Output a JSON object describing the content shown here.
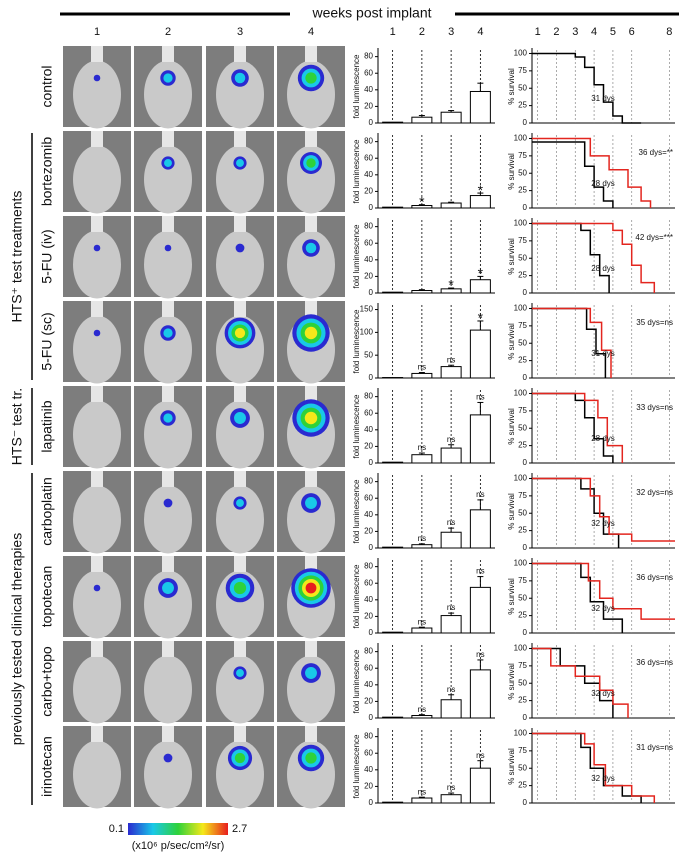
{
  "header": {
    "title": "weeks post implant"
  },
  "image_weeks": [
    "1",
    "2",
    "3",
    "4"
  ],
  "groups": [
    {
      "label": "HTS⁺ test treatments"
    },
    {
      "label": "HTS⁻ test tr."
    },
    {
      "label": "previously tested clinical therapies"
    }
  ],
  "bar_axis": {
    "ylabel": "fold luminescence",
    "categories": [
      "1",
      "2",
      "3",
      "4"
    ]
  },
  "survival_axis": {
    "ylabel": "% survival",
    "xlim": [
      0.7,
      8.3
    ],
    "xticks": [
      1,
      2,
      3,
      4,
      5,
      6,
      8
    ],
    "ylim": [
      0,
      105
    ],
    "yticks": [
      0,
      25,
      50,
      75,
      100
    ]
  },
  "rows": [
    {
      "name": "control",
      "bars": {
        "ylim": [
          0,
          88
        ],
        "yticks": [
          0,
          20,
          40,
          60,
          80
        ],
        "values": [
          1,
          7,
          13,
          38
        ],
        "errors": [
          0,
          2,
          2,
          10
        ],
        "annotations": [
          null,
          null,
          null,
          null
        ]
      },
      "survival": {
        "curves": [
          {
            "color": "#000000",
            "x": [
              0.7,
              3.0,
              3.0,
              3.5,
              3.5,
              4.0,
              4.0,
              4.5,
              4.5,
              5.0,
              5.0,
              5.5,
              5.5,
              6.5
            ],
            "y": [
              100,
              100,
              95,
              95,
              80,
              80,
              55,
              55,
              30,
              30,
              10,
              10,
              0,
              0
            ]
          }
        ],
        "labels": [
          {
            "text": "31 dys",
            "color": "#000000"
          }
        ]
      }
    },
    {
      "name": "bortezomib",
      "bars": {
        "ylim": [
          0,
          88
        ],
        "yticks": [
          0,
          20,
          40,
          60,
          80
        ],
        "values": [
          1,
          3,
          6,
          15
        ],
        "errors": [
          0,
          1,
          1,
          3
        ],
        "annotations": [
          null,
          "*",
          null,
          "*"
        ]
      },
      "survival": {
        "curves": [
          {
            "color": "#000000",
            "x": [
              0.7,
              3.5,
              3.5,
              4.0,
              4.0,
              4.5,
              4.5,
              5.0,
              5.0
            ],
            "y": [
              95,
              95,
              60,
              60,
              30,
              30,
              10,
              10,
              0
            ]
          },
          {
            "color": "#e3261f",
            "x": [
              0.7,
              3.8,
              3.8,
              4.8,
              4.8,
              5.8,
              5.8,
              6.5,
              6.5,
              7.0,
              7.0
            ],
            "y": [
              100,
              100,
              75,
              75,
              55,
              55,
              30,
              30,
              10,
              10,
              0
            ]
          }
        ],
        "labels": [
          {
            "text": "28 dys",
            "color": "#000000"
          },
          {
            "text": "36 dys=**",
            "color": "#e3261f"
          }
        ]
      }
    },
    {
      "name": "5-FU (iv)",
      "bars": {
        "ylim": [
          0,
          88
        ],
        "yticks": [
          0,
          20,
          40,
          60,
          80
        ],
        "values": [
          1,
          3,
          5,
          16
        ],
        "errors": [
          0,
          1,
          1,
          4
        ],
        "annotations": [
          null,
          null,
          "*",
          "*"
        ]
      },
      "survival": {
        "curves": [
          {
            "color": "#000000",
            "x": [
              0.7,
              3.3,
              3.3,
              3.8,
              3.8,
              4.3,
              4.3,
              4.8,
              4.8
            ],
            "y": [
              100,
              100,
              90,
              90,
              55,
              55,
              25,
              25,
              0
            ]
          },
          {
            "color": "#e3261f",
            "x": [
              0.7,
              5.0,
              5.0,
              5.5,
              5.5,
              6.0,
              6.0,
              6.5,
              6.5,
              7.2,
              7.2
            ],
            "y": [
              100,
              100,
              90,
              90,
              70,
              70,
              40,
              40,
              15,
              15,
              0
            ]
          }
        ],
        "labels": [
          {
            "text": "28 dys",
            "color": "#000000"
          },
          {
            "text": "42 dys=***",
            "color": "#e3261f"
          }
        ]
      }
    },
    {
      "name": "5-FU (sc)",
      "bars": {
        "ylim": [
          0,
          160
        ],
        "yticks": [
          0,
          50,
          100,
          150
        ],
        "values": [
          1,
          10,
          25,
          105
        ],
        "errors": [
          0,
          2,
          3,
          20
        ],
        "annotations": [
          null,
          "ns",
          "ns",
          "*"
        ]
      },
      "survival": {
        "curves": [
          {
            "color": "#000000",
            "x": [
              0.7,
              3.6,
              3.6,
              4.1,
              4.1,
              4.6,
              4.6
            ],
            "y": [
              100,
              100,
              70,
              70,
              35,
              35,
              0
            ]
          },
          {
            "color": "#e3261f",
            "x": [
              0.7,
              3.8,
              3.8,
              4.4,
              4.4,
              4.9,
              4.9
            ],
            "y": [
              100,
              100,
              80,
              80,
              40,
              40,
              0
            ]
          }
        ],
        "labels": [
          {
            "text": "31 dys",
            "color": "#000000"
          },
          {
            "text": "35 dys=ns",
            "color": "#e3261f"
          }
        ]
      }
    },
    {
      "name": "lapatinib",
      "bars": {
        "ylim": [
          0,
          88
        ],
        "yticks": [
          0,
          20,
          40,
          60,
          80
        ],
        "values": [
          1,
          10,
          18,
          58
        ],
        "errors": [
          0,
          2,
          4,
          15
        ],
        "annotations": [
          null,
          "ns",
          "ns",
          "ns"
        ]
      },
      "survival": {
        "curves": [
          {
            "color": "#000000",
            "x": [
              0.7,
              3.0,
              3.0,
              3.5,
              3.5,
              4.0,
              4.0,
              4.5,
              4.5,
              5.0,
              5.0
            ],
            "y": [
              100,
              100,
              90,
              90,
              65,
              65,
              35,
              35,
              10,
              10,
              0
            ]
          },
          {
            "color": "#e3261f",
            "x": [
              0.7,
              3.5,
              3.5,
              4.2,
              4.2,
              4.7,
              4.7,
              5.5,
              5.5
            ],
            "y": [
              100,
              100,
              90,
              90,
              65,
              65,
              25,
              25,
              0
            ]
          }
        ],
        "labels": [
          {
            "text": "28 dys",
            "color": "#000000"
          },
          {
            "text": "33 dys=ns",
            "color": "#e3261f"
          }
        ]
      }
    },
    {
      "name": "carboplatin",
      "bars": {
        "ylim": [
          0,
          88
        ],
        "yticks": [
          0,
          20,
          40,
          60,
          80
        ],
        "values": [
          1,
          4,
          19,
          46
        ],
        "errors": [
          0,
          1,
          5,
          12
        ],
        "annotations": [
          null,
          "ns",
          "ns",
          "ns"
        ]
      },
      "survival": {
        "curves": [
          {
            "color": "#000000",
            "x": [
              0.7,
              3.3,
              3.3,
              4.0,
              4.0,
              4.5,
              4.5,
              5.3,
              5.3
            ],
            "y": [
              100,
              100,
              85,
              85,
              50,
              50,
              20,
              20,
              0
            ]
          },
          {
            "color": "#e3261f",
            "x": [
              0.7,
              3.8,
              3.8,
              4.3,
              4.3,
              4.8,
              4.8,
              6.0,
              6.0,
              8.3
            ],
            "y": [
              100,
              100,
              75,
              75,
              45,
              45,
              20,
              20,
              10,
              10
            ]
          }
        ],
        "labels": [
          {
            "text": "32 dys",
            "color": "#000000"
          },
          {
            "text": "32 dys=ns",
            "color": "#e3261f"
          }
        ]
      }
    },
    {
      "name": "topotecan",
      "bars": {
        "ylim": [
          0,
          88
        ],
        "yticks": [
          0,
          20,
          40,
          60,
          80
        ],
        "values": [
          1,
          6,
          21,
          55
        ],
        "errors": [
          0,
          1,
          3,
          13
        ],
        "annotations": [
          null,
          "ns",
          "ns",
          "ns"
        ]
      },
      "survival": {
        "curves": [
          {
            "color": "#000000",
            "x": [
              0.7,
              3.3,
              3.3,
              3.8,
              3.8,
              4.5,
              4.5,
              5.5,
              5.5
            ],
            "y": [
              100,
              100,
              80,
              80,
              45,
              45,
              20,
              20,
              0
            ]
          },
          {
            "color": "#e3261f",
            "x": [
              0.7,
              3.7,
              3.7,
              4.3,
              4.3,
              5.0,
              5.0,
              6.5,
              6.5,
              8.3
            ],
            "y": [
              100,
              100,
              75,
              75,
              50,
              50,
              35,
              35,
              20,
              20
            ]
          }
        ],
        "labels": [
          {
            "text": "32 dys",
            "color": "#000000"
          },
          {
            "text": "36 dys=ns",
            "color": "#e3261f"
          }
        ]
      }
    },
    {
      "name": "carbo+topo",
      "bars": {
        "ylim": [
          0,
          88
        ],
        "yticks": [
          0,
          20,
          40,
          60,
          80
        ],
        "values": [
          1,
          3,
          22,
          58
        ],
        "errors": [
          0,
          1,
          6,
          12
        ],
        "annotations": [
          null,
          "ns",
          "ns",
          "ns"
        ]
      },
      "survival": {
        "curves": [
          {
            "color": "#000000",
            "x": [
              0.7,
              2.2,
              2.2,
              3.5,
              3.5,
              4.3,
              4.3,
              5.0,
              5.0
            ],
            "y": [
              100,
              100,
              75,
              75,
              50,
              50,
              25,
              25,
              0
            ]
          },
          {
            "color": "#e3261f",
            "x": [
              0.7,
              1.7,
              1.7,
              3.0,
              3.0,
              4.3,
              4.3,
              5.0,
              5.0,
              5.8,
              5.8
            ],
            "y": [
              100,
              100,
              75,
              75,
              60,
              60,
              40,
              40,
              20,
              20,
              0
            ]
          }
        ],
        "labels": [
          {
            "text": "32 dys",
            "color": "#000000"
          },
          {
            "text": "36 dys=ns",
            "color": "#e3261f"
          }
        ]
      }
    },
    {
      "name": "irinotecan",
      "bars": {
        "ylim": [
          0,
          88
        ],
        "yticks": [
          0,
          20,
          40,
          60,
          80
        ],
        "values": [
          1,
          6,
          10,
          42
        ],
        "errors": [
          0,
          1,
          2,
          9
        ],
        "annotations": [
          null,
          "ns",
          "ns",
          "ns"
        ]
      },
      "survival": {
        "curves": [
          {
            "color": "#000000",
            "x": [
              0.7,
              3.3,
              3.3,
              3.8,
              3.8,
              4.5,
              4.5,
              5.5,
              5.5,
              6.5,
              6.5
            ],
            "y": [
              100,
              100,
              80,
              80,
              50,
              50,
              25,
              25,
              10,
              10,
              0
            ]
          },
          {
            "color": "#e3261f",
            "x": [
              0.7,
              3.5,
              3.5,
              4.0,
              4.0,
              4.6,
              4.6,
              6.0,
              6.0,
              7.2,
              7.2
            ],
            "y": [
              100,
              100,
              85,
              85,
              55,
              55,
              25,
              25,
              10,
              10,
              0
            ]
          }
        ],
        "labels": [
          {
            "text": "32 dys",
            "color": "#000000"
          },
          {
            "text": "31 dys=ns",
            "color": "#e3261f"
          }
        ]
      }
    }
  ],
  "colorbar": {
    "min": 0.1,
    "max": 2.7,
    "unit": "(x10⁶ p/sec/cm²/sr)"
  }
}
